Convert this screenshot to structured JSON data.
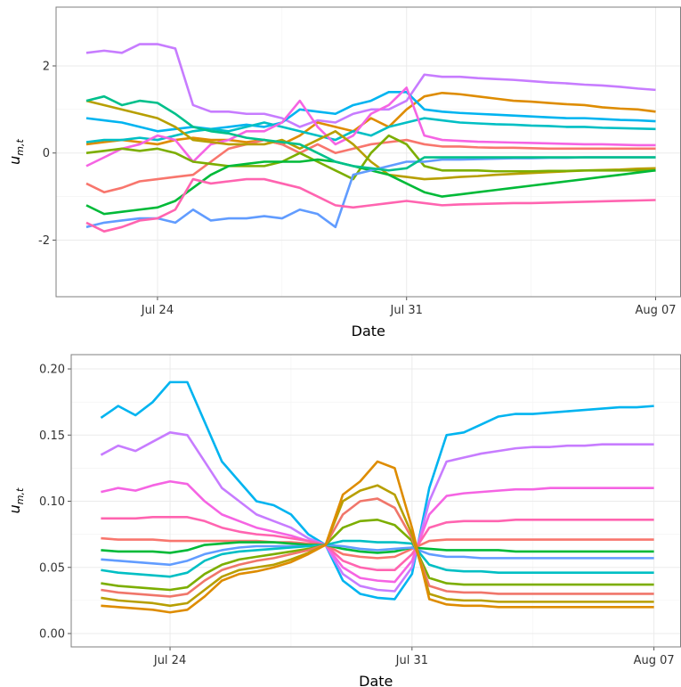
{
  "chart_data": [
    {
      "type": "line",
      "xlabel": "Date",
      "ylabel": "u",
      "ylabel_sub": "m,t",
      "x": [
        22,
        22.5,
        23,
        23.5,
        24,
        24.5,
        25,
        25.5,
        26,
        26.5,
        27,
        27.5,
        28,
        28.5,
        29,
        29.5,
        30,
        30.5,
        31,
        31.5,
        32,
        32.5,
        33,
        33.5,
        34,
        34.5,
        35,
        35.5,
        36,
        36.5,
        37,
        37.5,
        38
      ],
      "xlim": [
        21.15,
        38.7
      ],
      "xticks": [
        {
          "value": 24,
          "label": "Jul 24"
        },
        {
          "value": 31,
          "label": "Jul 31"
        },
        {
          "value": 38,
          "label": "Aug 07"
        }
      ],
      "ylim": [
        -3.3,
        3.35
      ],
      "yticks": [
        -2,
        0,
        2
      ],
      "grid": true,
      "series": [
        {
          "color": "#C77CFF",
          "values": [
            2.3,
            2.35,
            2.3,
            2.5,
            2.5,
            2.4,
            1.1,
            0.95,
            0.95,
            0.9,
            0.9,
            0.8,
            0.6,
            0.75,
            0.7,
            0.9,
            1.0,
            1.0,
            1.2,
            1.8,
            1.75,
            1.75,
            1.72,
            1.7,
            1.68,
            1.65,
            1.62,
            1.6,
            1.57,
            1.55,
            1.52,
            1.48,
            1.45
          ]
        },
        {
          "color": "#DE8C00",
          "values": [
            0.2,
            0.25,
            0.3,
            0.25,
            0.2,
            0.3,
            0.35,
            0.3,
            0.3,
            0.25,
            0.3,
            0.2,
            0.4,
            0.7,
            0.6,
            0.5,
            0.8,
            0.6,
            1.0,
            1.3,
            1.38,
            1.35,
            1.3,
            1.25,
            1.2,
            1.18,
            1.15,
            1.12,
            1.1,
            1.05,
            1.02,
            1.0,
            0.95
          ]
        },
        {
          "color": "#00B4F0",
          "values": [
            0.8,
            0.75,
            0.7,
            0.6,
            0.5,
            0.55,
            0.6,
            0.55,
            0.6,
            0.65,
            0.6,
            0.7,
            1.0,
            0.95,
            0.9,
            1.1,
            1.2,
            1.4,
            1.4,
            1.0,
            0.95,
            0.92,
            0.9,
            0.88,
            0.86,
            0.84,
            0.82,
            0.8,
            0.8,
            0.78,
            0.76,
            0.75,
            0.73
          ]
        },
        {
          "color": "#00BFC4",
          "values": [
            0.25,
            0.3,
            0.3,
            0.35,
            0.3,
            0.4,
            0.5,
            0.55,
            0.5,
            0.6,
            0.7,
            0.6,
            0.5,
            0.4,
            0.3,
            0.5,
            0.4,
            0.6,
            0.7,
            0.8,
            0.75,
            0.7,
            0.68,
            0.66,
            0.65,
            0.63,
            0.62,
            0.6,
            0.6,
            0.58,
            0.57,
            0.56,
            0.55
          ]
        },
        {
          "color": "#F564E3",
          "values": [
            -0.3,
            -0.1,
            0.1,
            0.2,
            0.4,
            0.3,
            -0.2,
            0.2,
            0.3,
            0.5,
            0.5,
            0.7,
            1.2,
            0.6,
            0.2,
            0.4,
            0.9,
            1.1,
            1.5,
            0.4,
            0.3,
            0.28,
            0.26,
            0.25,
            0.24,
            0.23,
            0.22,
            0.21,
            0.2,
            0.2,
            0.19,
            0.18,
            0.18
          ]
        },
        {
          "color": "#F8766D",
          "values": [
            -0.7,
            -0.9,
            -0.8,
            -0.65,
            -0.6,
            -0.55,
            -0.5,
            -0.2,
            0.1,
            0.2,
            0.3,
            0.2,
            0.0,
            0.2,
            0.0,
            0.1,
            0.2,
            0.25,
            0.3,
            0.2,
            0.15,
            0.15,
            0.13,
            0.12,
            0.12,
            0.11,
            0.1,
            0.1,
            0.1,
            0.1,
            0.1,
            0.1,
            0.1
          ]
        },
        {
          "color": "#B79F00",
          "values": [
            1.2,
            1.1,
            1.0,
            0.9,
            0.8,
            0.6,
            0.3,
            0.25,
            0.2,
            0.2,
            0.2,
            0.3,
            0.1,
            0.3,
            0.5,
            0.2,
            -0.2,
            -0.5,
            -0.55,
            -0.6,
            -0.58,
            -0.55,
            -0.53,
            -0.5,
            -0.48,
            -0.46,
            -0.44,
            -0.42,
            -0.4,
            -0.39,
            -0.38,
            -0.36,
            -0.35
          ]
        },
        {
          "color": "#7CAE00",
          "values": [
            0.0,
            0.05,
            0.1,
            0.05,
            0.1,
            0.0,
            -0.2,
            -0.25,
            -0.3,
            -0.3,
            -0.3,
            -0.2,
            0.0,
            -0.2,
            -0.4,
            -0.6,
            0.0,
            0.4,
            0.2,
            -0.3,
            -0.4,
            -0.4,
            -0.4,
            -0.42,
            -0.42,
            -0.42,
            -0.41,
            -0.41,
            -0.4,
            -0.4,
            -0.4,
            -0.4,
            -0.4
          ]
        },
        {
          "color": "#00BA38",
          "values": [
            -1.2,
            -1.4,
            -1.35,
            -1.3,
            -1.25,
            -1.1,
            -0.8,
            -0.5,
            -0.3,
            -0.25,
            -0.2,
            -0.2,
            -0.2,
            -0.15,
            -0.2,
            -0.3,
            -0.4,
            -0.5,
            -0.7,
            -0.9,
            -1.0,
            -0.95,
            -0.9,
            -0.85,
            -0.8,
            -0.75,
            -0.7,
            -0.65,
            -0.6,
            -0.55,
            -0.5,
            -0.45,
            -0.4
          ]
        },
        {
          "color": "#619CFF",
          "values": [
            -1.7,
            -1.6,
            -1.55,
            -1.5,
            -1.5,
            -1.6,
            -1.3,
            -1.55,
            -1.5,
            -1.5,
            -1.45,
            -1.5,
            -1.3,
            -1.4,
            -1.7,
            -0.5,
            -0.4,
            -0.3,
            -0.2,
            -0.2,
            -0.15,
            -0.15,
            -0.14,
            -0.13,
            -0.12,
            -0.12,
            -0.11,
            -0.11,
            -0.1,
            -0.1,
            -0.1,
            -0.1,
            -0.1
          ]
        },
        {
          "color": "#FF64B0",
          "values": [
            -1.6,
            -1.8,
            -1.7,
            -1.55,
            -1.5,
            -1.3,
            -0.6,
            -0.7,
            -0.65,
            -0.6,
            -0.6,
            -0.7,
            -0.8,
            -1.0,
            -1.2,
            -1.25,
            -1.2,
            -1.15,
            -1.1,
            -1.15,
            -1.2,
            -1.18,
            -1.17,
            -1.16,
            -1.15,
            -1.15,
            -1.14,
            -1.13,
            -1.12,
            -1.11,
            -1.1,
            -1.09,
            -1.08
          ]
        },
        {
          "color": "#00C08B",
          "values": [
            1.2,
            1.3,
            1.1,
            1.2,
            1.15,
            0.9,
            0.6,
            0.5,
            0.45,
            0.35,
            0.3,
            0.25,
            0.2,
            0.0,
            -0.2,
            -0.3,
            -0.35,
            -0.4,
            -0.35,
            -0.1,
            -0.1,
            -0.1,
            -0.1,
            -0.1,
            -0.1,
            -0.1,
            -0.1,
            -0.1,
            -0.1,
            -0.1,
            -0.1,
            -0.1,
            -0.1
          ]
        }
      ]
    },
    {
      "type": "line",
      "xlabel": "Date",
      "ylabel": "u",
      "ylabel_sub": "m,t",
      "x": [
        22,
        22.5,
        23,
        23.5,
        24,
        24.5,
        25,
        25.5,
        26,
        26.5,
        27,
        27.5,
        28,
        28.5,
        29,
        29.5,
        30,
        30.5,
        31,
        31.5,
        32,
        32.5,
        33,
        33.5,
        34,
        34.5,
        35,
        35.5,
        36,
        36.5,
        37,
        37.5,
        38
      ],
      "xlim": [
        21.14,
        38.77
      ],
      "xticks": [
        {
          "value": 24,
          "label": "Jul 24"
        },
        {
          "value": 31,
          "label": "Jul 31"
        },
        {
          "value": 38,
          "label": "Aug 07"
        }
      ],
      "ylim": [
        -0.0101,
        0.2108
      ],
      "yticks": [
        {
          "value": 0,
          "label": "0.00"
        },
        {
          "value": 0.05,
          "label": "0.05"
        },
        {
          "value": 0.1,
          "label": "0.10"
        },
        {
          "value": 0.15,
          "label": "0.15"
        },
        {
          "value": 0.2,
          "label": "0.20"
        }
      ],
      "grid": true,
      "series": [
        {
          "color": "#00B4F0",
          "values": [
            0.163,
            0.172,
            0.165,
            0.175,
            0.19,
            0.19,
            0.16,
            0.13,
            0.115,
            0.1,
            0.097,
            0.09,
            0.075,
            0.067,
            0.04,
            0.03,
            0.027,
            0.026,
            0.045,
            0.11,
            0.15,
            0.152,
            0.158,
            0.164,
            0.166,
            0.166,
            0.167,
            0.168,
            0.169,
            0.17,
            0.171,
            0.171,
            0.172
          ]
        },
        {
          "color": "#C77CFF",
          "values": [
            0.135,
            0.142,
            0.138,
            0.145,
            0.152,
            0.15,
            0.13,
            0.11,
            0.1,
            0.09,
            0.085,
            0.08,
            0.072,
            0.067,
            0.045,
            0.036,
            0.033,
            0.032,
            0.05,
            0.1,
            0.13,
            0.133,
            0.136,
            0.138,
            0.14,
            0.141,
            0.141,
            0.142,
            0.142,
            0.143,
            0.143,
            0.143,
            0.143
          ]
        },
        {
          "color": "#F564E3",
          "values": [
            0.107,
            0.11,
            0.108,
            0.112,
            0.115,
            0.113,
            0.1,
            0.09,
            0.085,
            0.08,
            0.077,
            0.074,
            0.07,
            0.067,
            0.05,
            0.042,
            0.04,
            0.039,
            0.055,
            0.09,
            0.104,
            0.106,
            0.107,
            0.108,
            0.109,
            0.109,
            0.11,
            0.11,
            0.11,
            0.11,
            0.11,
            0.11,
            0.11
          ]
        },
        {
          "color": "#FF64B0",
          "values": [
            0.087,
            0.087,
            0.087,
            0.088,
            0.088,
            0.088,
            0.085,
            0.08,
            0.077,
            0.075,
            0.074,
            0.072,
            0.07,
            0.067,
            0.055,
            0.05,
            0.048,
            0.048,
            0.06,
            0.08,
            0.084,
            0.085,
            0.085,
            0.085,
            0.086,
            0.086,
            0.086,
            0.086,
            0.086,
            0.086,
            0.086,
            0.086,
            0.086
          ]
        },
        {
          "color": "#F8766D",
          "values": [
            0.072,
            0.071,
            0.071,
            0.071,
            0.07,
            0.07,
            0.07,
            0.07,
            0.07,
            0.07,
            0.069,
            0.069,
            0.068,
            0.067,
            0.06,
            0.058,
            0.057,
            0.058,
            0.064,
            0.07,
            0.071,
            0.071,
            0.071,
            0.071,
            0.071,
            0.071,
            0.071,
            0.071,
            0.071,
            0.071,
            0.071,
            0.071,
            0.071
          ]
        },
        {
          "color": "#00BA38",
          "values": [
            0.063,
            0.062,
            0.062,
            0.062,
            0.061,
            0.063,
            0.067,
            0.068,
            0.069,
            0.069,
            0.069,
            0.068,
            0.067,
            0.067,
            0.064,
            0.062,
            0.061,
            0.062,
            0.065,
            0.064,
            0.063,
            0.063,
            0.063,
            0.063,
            0.062,
            0.062,
            0.062,
            0.062,
            0.062,
            0.062,
            0.062,
            0.062,
            0.062
          ]
        },
        {
          "color": "#619CFF",
          "values": [
            0.056,
            0.055,
            0.054,
            0.053,
            0.052,
            0.055,
            0.06,
            0.063,
            0.065,
            0.066,
            0.066,
            0.066,
            0.066,
            0.067,
            0.066,
            0.064,
            0.063,
            0.064,
            0.065,
            0.06,
            0.058,
            0.058,
            0.057,
            0.057,
            0.057,
            0.057,
            0.057,
            0.057,
            0.057,
            0.057,
            0.057,
            0.057,
            0.057
          ]
        },
        {
          "color": "#00BFC4",
          "values": [
            0.048,
            0.046,
            0.045,
            0.044,
            0.043,
            0.046,
            0.055,
            0.06,
            0.062,
            0.063,
            0.064,
            0.065,
            0.066,
            0.067,
            0.07,
            0.07,
            0.069,
            0.069,
            0.068,
            0.052,
            0.048,
            0.047,
            0.047,
            0.046,
            0.046,
            0.046,
            0.046,
            0.046,
            0.046,
            0.046,
            0.046,
            0.046,
            0.046
          ]
        },
        {
          "color": "#7CAE00",
          "values": [
            0.038,
            0.036,
            0.035,
            0.034,
            0.033,
            0.035,
            0.045,
            0.052,
            0.056,
            0.058,
            0.06,
            0.062,
            0.064,
            0.067,
            0.08,
            0.085,
            0.086,
            0.082,
            0.07,
            0.042,
            0.038,
            0.037,
            0.037,
            0.037,
            0.037,
            0.037,
            0.037,
            0.037,
            0.037,
            0.037,
            0.037,
            0.037,
            0.037
          ]
        },
        {
          "color": "#F0766A",
          "values": [
            0.033,
            0.031,
            0.03,
            0.029,
            0.028,
            0.03,
            0.04,
            0.048,
            0.052,
            0.055,
            0.057,
            0.06,
            0.063,
            0.067,
            0.09,
            0.1,
            0.102,
            0.095,
            0.072,
            0.036,
            0.032,
            0.031,
            0.031,
            0.03,
            0.03,
            0.03,
            0.03,
            0.03,
            0.03,
            0.03,
            0.03,
            0.03,
            0.03
          ]
        },
        {
          "color": "#B79F00",
          "values": [
            0.027,
            0.025,
            0.024,
            0.023,
            0.021,
            0.023,
            0.033,
            0.043,
            0.048,
            0.05,
            0.052,
            0.056,
            0.061,
            0.067,
            0.1,
            0.108,
            0.112,
            0.105,
            0.075,
            0.03,
            0.026,
            0.025,
            0.025,
            0.024,
            0.024,
            0.024,
            0.024,
            0.024,
            0.024,
            0.024,
            0.024,
            0.024,
            0.024
          ]
        },
        {
          "color": "#DE8C00",
          "values": [
            0.021,
            0.02,
            0.019,
            0.018,
            0.016,
            0.018,
            0.028,
            0.04,
            0.045,
            0.047,
            0.05,
            0.054,
            0.06,
            0.067,
            0.105,
            0.115,
            0.13,
            0.125,
            0.08,
            0.026,
            0.022,
            0.021,
            0.021,
            0.02,
            0.02,
            0.02,
            0.02,
            0.02,
            0.02,
            0.02,
            0.02,
            0.02,
            0.02
          ]
        }
      ]
    }
  ]
}
